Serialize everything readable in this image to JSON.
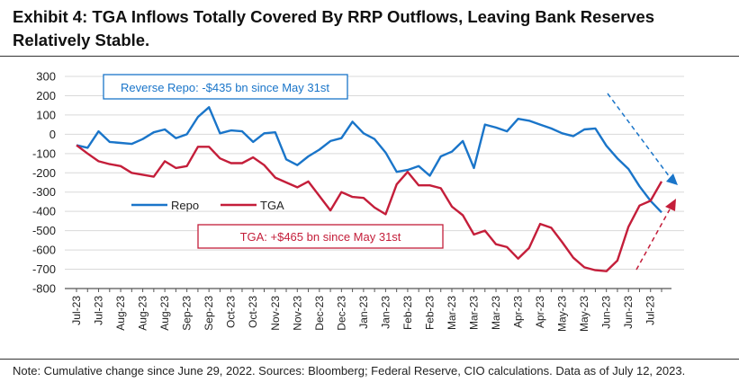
{
  "title": "Exhibit 4: TGA Inflows Totally Covered By RRP Outflows, Leaving Bank Reserves Relatively Stable.",
  "note": "Note: Cumulative change since June 29, 2022. Sources: Bloomberg; Federal Reserve, CIO calculations. Data as of July 12, 2023.",
  "colors": {
    "repo": "#1a75c9",
    "tga": "#c41e3a",
    "grid": "#d9d9d9"
  },
  "chart_data": {
    "type": "line",
    "title": "Exhibit 4: TGA Inflows Totally Covered By RRP Outflows, Leaving Bank Reserves Relatively Stable.",
    "xlabel": "",
    "ylabel": "",
    "ylim": [
      -800,
      300
    ],
    "yticks": [
      300,
      200,
      100,
      0,
      -100,
      -200,
      -300,
      -400,
      -500,
      -600,
      -700,
      -800
    ],
    "grid": true,
    "legend_position": "center-left",
    "xtick_labels": [
      "Jul-23",
      "Jul-23",
      "Aug-23",
      "Aug-23",
      "Aug-23",
      "Sep-23",
      "Sep-23",
      "Oct-23",
      "Oct-23",
      "Nov-23",
      "Nov-23",
      "Dec-23",
      "Dec-23",
      "Jan-23",
      "Jan-23",
      "Feb-23",
      "Feb-23",
      "Mar-23",
      "Mar-23",
      "Mar-23",
      "Apr-23",
      "Apr-23",
      "May-23",
      "May-23",
      "Jun-23",
      "Jun-23",
      "Jul-23"
    ],
    "series": [
      {
        "name": "Repo",
        "values": [
          -57,
          -70,
          15,
          -40,
          -45,
          -50,
          -25,
          10,
          25,
          -20,
          0,
          90,
          140,
          5,
          20,
          15,
          -40,
          5,
          10,
          -130,
          -160,
          -115,
          -80,
          -35,
          -20,
          65,
          5,
          -25,
          -95,
          -195,
          -185,
          -165,
          -215,
          -115,
          -90,
          -35,
          -175,
          50,
          35,
          15,
          80,
          70,
          50,
          30,
          5,
          -10,
          25,
          30,
          -60,
          -125,
          -180,
          -270,
          -345,
          -405
        ]
      },
      {
        "name": "TGA",
        "values": [
          -57,
          -100,
          -140,
          -155,
          -165,
          -200,
          -210,
          -220,
          -140,
          -175,
          -165,
          -65,
          -65,
          -125,
          -150,
          -150,
          -120,
          -160,
          -225,
          -250,
          -275,
          -245,
          -320,
          -395,
          -300,
          -325,
          -330,
          -380,
          -415,
          -260,
          -195,
          -265,
          -265,
          -280,
          -375,
          -420,
          -520,
          -500,
          -570,
          -585,
          -645,
          -590,
          -465,
          -485,
          -560,
          -640,
          -690,
          -705,
          -710,
          -655,
          -480,
          -370,
          -345,
          -245
        ]
      }
    ],
    "annotations": [
      {
        "text": "Reverse Repo: -$435 bn since May 31st",
        "series": "Repo"
      },
      {
        "text": "TGA: +$465 bn since May 31st",
        "series": "TGA"
      }
    ]
  }
}
